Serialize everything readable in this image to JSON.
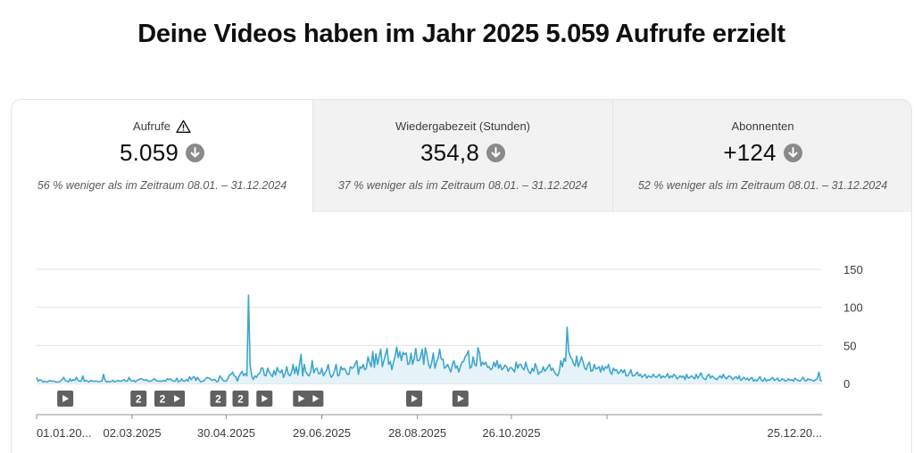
{
  "headline": "Deine Videos haben im Jahr 2025 5.059 Aufrufe erzielt",
  "tabs": [
    {
      "title": "Aufrufe",
      "value": "5.059",
      "note": "56 % weniger als im Zeitraum 08.01. – 31.12.2024",
      "warning_icon": "warning-icon",
      "trend_icon": "arrow-down-circle-icon",
      "selected": true
    },
    {
      "title": "Wiedergabezeit (Stunden)",
      "value": "354,8",
      "note": "37 % weniger als im Zeitraum 08.01. – 31.12.2024",
      "trend_icon": "arrow-down-circle-icon",
      "selected": false
    },
    {
      "title": "Abonnenten",
      "value": "+124",
      "note": "52 % weniger als im Zeitraum 08.01. – 31.12.2024",
      "trend_icon": "arrow-down-circle-icon",
      "selected": false
    }
  ],
  "colors": {
    "line": "#3ea6cf",
    "fill": "#e6f4fa",
    "marker": "#606060",
    "icon": "#8a8a8a"
  },
  "chart_data": {
    "type": "area",
    "x_start": "01.01.2025",
    "x_end": "31.12.2025",
    "y_ticks": [
      "150",
      "100",
      "50",
      "0"
    ],
    "ylim": [
      0,
      150
    ],
    "x_tick_labels": [
      "01.01.20...",
      "02.03.2025",
      "30.04.2025",
      "29.06.2025",
      "28.08.2025",
      "26.10.2025",
      "25.12.20..."
    ],
    "grid": true,
    "series": [
      {
        "values": [
          8,
          3,
          5,
          4,
          2,
          3,
          2,
          2,
          4,
          3,
          3,
          3,
          2,
          2,
          2,
          3,
          5,
          8,
          4,
          3,
          2,
          6,
          3,
          5,
          4,
          8,
          4,
          3,
          3,
          10,
          3,
          4,
          3,
          2,
          4,
          3,
          3,
          3,
          3,
          2,
          3,
          3,
          12,
          4,
          2,
          3,
          2,
          3,
          4,
          2,
          3,
          4,
          3,
          3,
          4,
          5,
          3,
          3,
          8,
          4,
          3,
          4,
          2,
          4,
          5,
          6,
          6,
          5,
          4,
          5,
          3,
          3,
          3,
          5,
          6,
          4,
          3,
          3,
          3,
          3,
          4,
          3,
          6,
          5,
          6,
          4,
          3,
          3,
          7,
          2,
          3,
          6,
          3,
          3,
          5,
          3,
          9,
          5,
          8,
          9,
          4,
          8,
          5,
          2,
          3,
          3,
          6,
          8,
          7,
          6,
          4,
          5,
          5,
          2,
          3,
          10,
          7,
          4,
          3,
          3,
          6,
          11,
          12,
          15,
          10,
          9,
          3,
          9,
          13,
          16,
          10,
          13,
          10,
          116,
          25,
          10,
          5,
          10,
          8,
          12,
          13,
          20,
          20,
          11,
          10,
          20,
          15,
          12,
          9,
          17,
          11,
          21,
          16,
          14,
          18,
          8,
          13,
          22,
          12,
          10,
          14,
          25,
          13,
          22,
          11,
          25,
          38,
          10,
          25,
          15,
          12,
          10,
          15,
          30,
          14,
          19,
          20,
          13,
          13,
          20,
          10,
          14,
          17,
          25,
          13,
          8,
          11,
          17,
          25,
          10,
          11,
          22,
          18,
          20,
          17,
          12,
          12,
          22,
          20,
          21,
          26,
          30,
          12,
          22,
          20,
          25,
          18,
          20,
          35,
          28,
          22,
          42,
          21,
          39,
          25,
          35,
          45,
          22,
          30,
          38,
          46,
          25,
          29,
          18,
          28,
          35,
          48,
          34,
          42,
          30,
          41,
          38,
          40,
          25,
          26,
          40,
          25,
          33,
          46,
          30,
          30,
          35,
          45,
          25,
          47,
          38,
          25,
          20,
          28,
          40,
          20,
          28,
          33,
          45,
          32,
          32,
          20,
          22,
          25,
          20,
          15,
          25,
          30,
          20,
          23,
          15,
          22,
          28,
          29,
          35,
          38,
          43,
          20,
          22,
          35,
          25,
          23,
          47,
          40,
          23,
          28,
          25,
          28,
          21,
          22,
          18,
          20,
          28,
          22,
          30,
          20,
          25,
          18,
          20,
          24,
          22,
          16,
          20,
          21,
          18,
          15,
          28,
          20,
          25,
          25,
          20,
          18,
          28,
          20,
          15,
          13,
          20,
          16,
          26,
          20,
          12,
          15,
          15,
          22,
          16,
          19,
          22,
          25,
          17,
          20,
          15,
          12,
          10,
          15,
          30,
          22,
          33,
          29,
          74,
          42,
          35,
          32,
          26,
          23,
          36,
          22,
          28,
          35,
          28,
          20,
          18,
          25,
          28,
          16,
          17,
          25,
          19,
          20,
          22,
          15,
          23,
          17,
          22,
          20,
          25,
          15,
          12,
          20,
          17,
          18,
          13,
          15,
          18,
          14,
          18,
          10,
          10,
          13,
          18,
          10,
          10,
          12,
          15,
          10,
          12,
          8,
          10,
          12,
          7,
          10,
          9,
          8,
          12,
          9,
          8,
          10,
          12,
          7,
          10,
          8,
          9,
          13,
          7,
          10,
          8,
          12,
          10,
          6,
          8,
          10,
          8,
          10,
          5,
          12,
          7,
          8,
          10,
          8,
          6,
          12,
          7,
          10,
          14,
          8,
          6,
          5,
          10,
          12,
          7,
          10,
          8,
          6,
          5,
          8,
          10,
          7,
          12,
          8,
          6,
          9,
          10,
          8,
          5,
          7,
          9,
          6,
          10,
          4,
          6,
          8,
          5,
          7,
          4,
          6,
          8,
          3,
          5,
          3,
          6,
          9,
          4,
          3,
          7,
          3,
          5,
          4,
          6,
          8,
          4,
          5,
          7,
          3,
          4,
          6,
          5,
          3,
          4,
          6,
          4,
          5,
          3,
          7,
          5,
          4,
          3,
          5,
          8,
          4,
          3,
          6,
          5,
          5,
          4,
          3,
          5,
          6,
          15,
          4,
          3
        ]
      }
    ],
    "peaks_note": "",
    "markers": [
      {
        "label": "",
        "kind": "play"
      },
      {
        "label": "2",
        "kind": "count"
      },
      {
        "label": "2",
        "kind": "count"
      },
      {
        "label": "",
        "kind": "play"
      },
      {
        "label": "2",
        "kind": "count"
      },
      {
        "label": "2",
        "kind": "count"
      },
      {
        "label": "",
        "kind": "play"
      },
      {
        "label": "",
        "kind": "play"
      },
      {
        "label": "",
        "kind": "play"
      },
      {
        "label": "",
        "kind": "play"
      },
      {
        "label": "",
        "kind": "play"
      }
    ],
    "marker_dates": [
      18,
      64,
      79,
      88,
      114,
      128,
      143,
      166,
      175,
      237,
      266
    ]
  }
}
